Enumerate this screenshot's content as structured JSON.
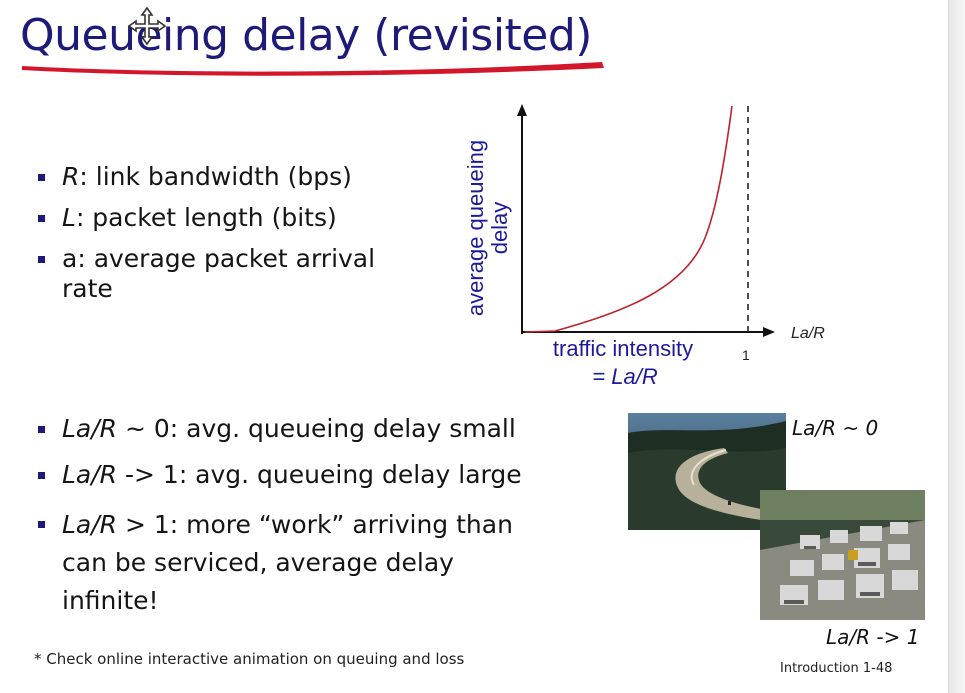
{
  "title": "Queueing delay (revisited)",
  "defs": [
    {
      "sym": "R",
      "text": ": link bandwidth (bps)"
    },
    {
      "sym": "L",
      "text": ": packet length (bits)"
    },
    {
      "sym": "",
      "text": "a: average packet arrival rate"
    }
  ],
  "cases": [
    {
      "sym": "La/R",
      "text": " ~ 0: avg. queueing delay small"
    },
    {
      "sym": "La/R",
      "text": " -> 1: avg. queueing delay large"
    },
    {
      "sym": "La/R",
      "text": " > 1: more “work” arriving than can be serviced, average delay infinite!"
    }
  ],
  "graph": {
    "ylabel_line1": "average queueing",
    "ylabel_line2": "delay",
    "xaxis_label": "La/R",
    "x_tick": "1",
    "x_caption_line1": "traffic intensity",
    "x_caption_line2": "= La/R"
  },
  "photo_captions": {
    "light": "La/R ~ 0",
    "heavy": "La/R -> 1"
  },
  "footnote": "* Check online interactive animation on queuing and loss",
  "page_number": "Introduction 1-48",
  "colors": {
    "title": "#1d1a7a",
    "underline": "#d4162a",
    "axis_label": "#1d1a9c",
    "curve": "#c0202a"
  }
}
